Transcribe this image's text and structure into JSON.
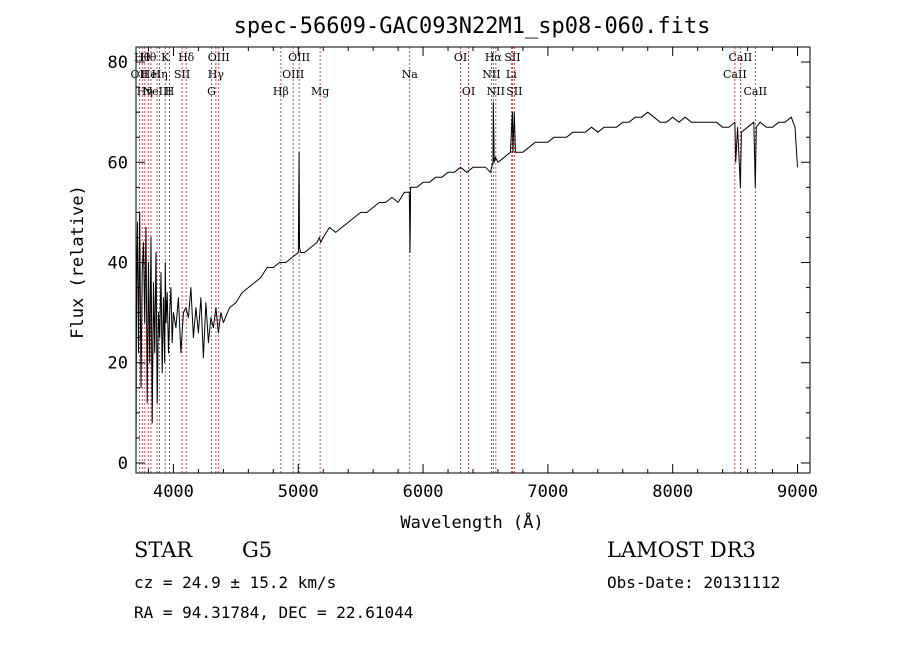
{
  "chart_data": {
    "type": "line",
    "title": "spec-56609-GAC093N22M1_sp08-060.fits",
    "xlabel": "Wavelength (Å)",
    "ylabel": "Flux (relative)",
    "xlim": [
      3700,
      9100
    ],
    "ylim": [
      -2,
      83
    ],
    "x_ticks": [
      4000,
      5000,
      6000,
      7000,
      8000,
      9000
    ],
    "y_ticks": [
      0,
      20,
      40,
      60,
      80
    ],
    "line_color": "#000000",
    "marker_color": "#b22222",
    "series": [
      {
        "name": "flux",
        "x": [
          3700,
          3705,
          3712,
          3720,
          3730,
          3740,
          3750,
          3760,
          3770,
          3780,
          3790,
          3800,
          3810,
          3820,
          3830,
          3840,
          3850,
          3860,
          3870,
          3880,
          3890,
          3900,
          3910,
          3920,
          3930,
          3935,
          3940,
          3950,
          3960,
          3970,
          3980,
          3990,
          4000,
          4020,
          4040,
          4060,
          4080,
          4100,
          4120,
          4140,
          4160,
          4180,
          4200,
          4220,
          4240,
          4260,
          4280,
          4300,
          4320,
          4340,
          4360,
          4380,
          4400,
          4450,
          4500,
          4550,
          4600,
          4650,
          4700,
          4750,
          4800,
          4850,
          4900,
          4950,
          5000,
          5007,
          5010,
          5020,
          5050,
          5100,
          5150,
          5170,
          5180,
          5200,
          5250,
          5300,
          5350,
          5400,
          5450,
          5500,
          5550,
          5600,
          5650,
          5700,
          5750,
          5800,
          5850,
          5890,
          5895,
          5900,
          5950,
          6000,
          6050,
          6100,
          6150,
          6200,
          6250,
          6300,
          6350,
          6400,
          6450,
          6500,
          6540,
          6560,
          6563,
          6570,
          6580,
          6600,
          6650,
          6700,
          6716,
          6720,
          6731,
          6740,
          6800,
          6850,
          6900,
          6950,
          7000,
          7050,
          7100,
          7150,
          7200,
          7250,
          7300,
          7350,
          7400,
          7450,
          7500,
          7550,
          7600,
          7650,
          7700,
          7750,
          7800,
          7850,
          7900,
          7950,
          8000,
          8050,
          8100,
          8150,
          8200,
          8250,
          8300,
          8350,
          8400,
          8450,
          8498,
          8505,
          8520,
          8542,
          8550,
          8600,
          8650,
          8662,
          8670,
          8700,
          8750,
          8800,
          8850,
          8900,
          8950,
          8980,
          9000
        ],
        "y": [
          2,
          35,
          48,
          22,
          50,
          15,
          38,
          44,
          28,
          47,
          12,
          40,
          20,
          45,
          8,
          36,
          22,
          42,
          12,
          30,
          25,
          38,
          18,
          33,
          20,
          40,
          28,
          34,
          22,
          30,
          35,
          24,
          30,
          27,
          33,
          22,
          30,
          31,
          29,
          35,
          25,
          31,
          26,
          33,
          21,
          32,
          24,
          29,
          27,
          31,
          26,
          30,
          28,
          31,
          32,
          34,
          35,
          36,
          37,
          39,
          39,
          40,
          40,
          41,
          42,
          62,
          43,
          42,
          42,
          43,
          44,
          45,
          44,
          45,
          47,
          46,
          47,
          48,
          49,
          50,
          50,
          51,
          52,
          52,
          53,
          52,
          54,
          54,
          42,
          55,
          55,
          56,
          56,
          57,
          57,
          58,
          58,
          59,
          58,
          59,
          59,
          59,
          58,
          60,
          72,
          60,
          61,
          60,
          61,
          62,
          70,
          62,
          70,
          62,
          62,
          63,
          64,
          64,
          64,
          65,
          65,
          65,
          66,
          66,
          66,
          67,
          66,
          67,
          67,
          67,
          68,
          68,
          69,
          69,
          70,
          69,
          68,
          68,
          69,
          68,
          69,
          68,
          68,
          68,
          68,
          68,
          67,
          67,
          68,
          60,
          67,
          55,
          66,
          67,
          68,
          55,
          67,
          68,
          67,
          67,
          68,
          68,
          69,
          67,
          59
        ]
      }
    ],
    "line_markers": [
      {
        "x": 3727,
        "label": "OII",
        "row": 1
      },
      {
        "x": 3750,
        "label": "Hθ",
        "row": 0
      },
      {
        "x": 3771,
        "label": "Hη",
        "row": 2
      },
      {
        "x": 3798,
        "label": "Hθ",
        "row": 0
      },
      {
        "x": 3820,
        "label": "HeI",
        "row": 1
      },
      {
        "x": 3869,
        "label": "NeIII",
        "row": 2
      },
      {
        "x": 3889,
        "label": "Hη",
        "row": 1
      },
      {
        "x": 3934,
        "label": "K",
        "row": 0
      },
      {
        "x": 3969,
        "label": "H",
        "row": 2
      },
      {
        "x": 4069,
        "label": "SII",
        "row": 1
      },
      {
        "x": 4102,
        "label": "Hδ",
        "row": 0
      },
      {
        "x": 4305,
        "label": "G",
        "row": 2
      },
      {
        "x": 4340,
        "label": "Hγ",
        "row": 1
      },
      {
        "x": 4363,
        "label": "OIII",
        "row": 0
      },
      {
        "x": 4861,
        "label": "Hβ",
        "row": 2
      },
      {
        "x": 4959,
        "label": "OIII",
        "row": 1
      },
      {
        "x": 5007,
        "label": "OIII",
        "row": 0
      },
      {
        "x": 5175,
        "label": "Mg",
        "row": 2
      },
      {
        "x": 5893,
        "label": "Na",
        "row": 1
      },
      {
        "x": 6300,
        "label": "OI",
        "row": 0
      },
      {
        "x": 6364,
        "label": "OI",
        "row": 2
      },
      {
        "x": 6548,
        "label": "NII",
        "row": 1
      },
      {
        "x": 6563,
        "label": "Hα",
        "row": 0
      },
      {
        "x": 6583,
        "label": "NII",
        "row": 2
      },
      {
        "x": 6707,
        "label": "Li",
        "row": 1
      },
      {
        "x": 6716,
        "label": "SII",
        "row": 0
      },
      {
        "x": 6731,
        "label": "SII",
        "row": 2
      },
      {
        "x": 8498,
        "label": "CaII",
        "row": 1
      },
      {
        "x": 8542,
        "label": "CaII",
        "row": 0
      },
      {
        "x": 8662,
        "label": "CaII",
        "row": 2
      }
    ]
  },
  "footer": {
    "class_label": "STAR",
    "subclass": "G5",
    "cz": "cz = 24.9 ± 15.2 km/s",
    "radec": "RA =  94.31784, DEC =  22.61044",
    "survey": "LAMOST DR3",
    "obs_date": "Obs-Date: 20131112"
  }
}
